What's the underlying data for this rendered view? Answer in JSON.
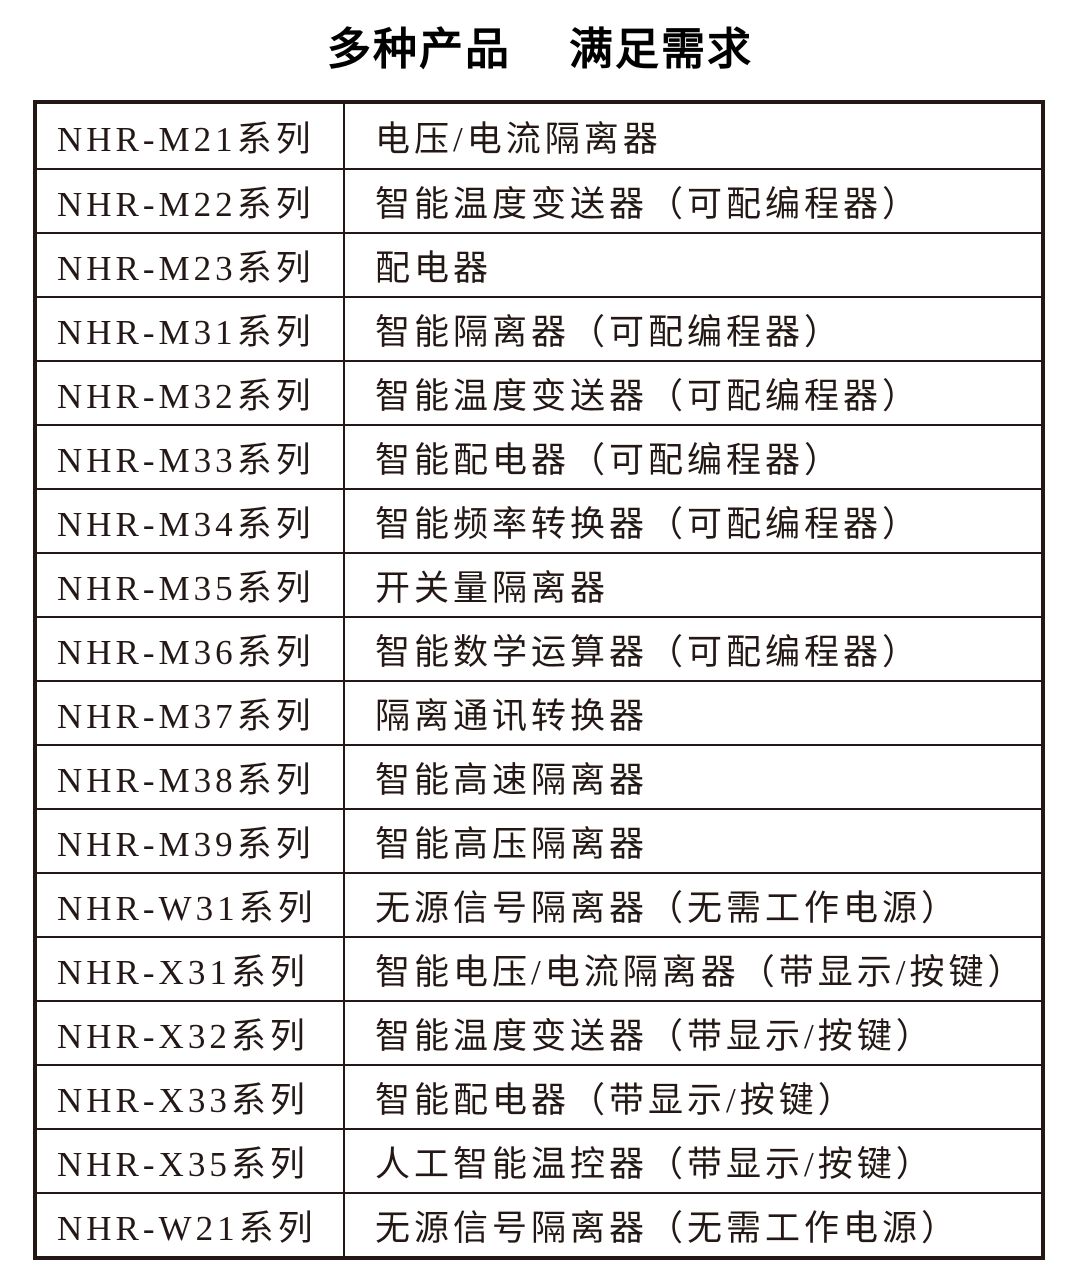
{
  "page": {
    "title_part1": "多种产品",
    "title_part2": "满足需求"
  },
  "colors": {
    "ink": "#231815",
    "title": "#000000",
    "background": "#ffffff"
  },
  "table": {
    "columns": [
      "series",
      "product"
    ],
    "rows": [
      {
        "series": "NHR-M21系列",
        "product": "电压/电流隔离器"
      },
      {
        "series": "NHR-M22系列",
        "product": "智能温度变送器（可配编程器）"
      },
      {
        "series": "NHR-M23系列",
        "product": "配电器"
      },
      {
        "series": "NHR-M31系列",
        "product": "智能隔离器（可配编程器）"
      },
      {
        "series": "NHR-M32系列",
        "product": "智能温度变送器（可配编程器）"
      },
      {
        "series": "NHR-M33系列",
        "product": "智能配电器（可配编程器）"
      },
      {
        "series": "NHR-M34系列",
        "product": "智能频率转换器（可配编程器）"
      },
      {
        "series": "NHR-M35系列",
        "product": "开关量隔离器"
      },
      {
        "series": "NHR-M36系列",
        "product": "智能数学运算器（可配编程器）"
      },
      {
        "series": "NHR-M37系列",
        "product": "隔离通讯转换器"
      },
      {
        "series": "NHR-M38系列",
        "product": "智能高速隔离器"
      },
      {
        "series": "NHR-M39系列",
        "product": "智能高压隔离器"
      },
      {
        "series": "NHR-W31系列",
        "product": "无源信号隔离器（无需工作电源）"
      },
      {
        "series": "NHR-X31系列",
        "product": "智能电压/电流隔离器（带显示/按键）"
      },
      {
        "series": "NHR-X32系列",
        "product": "智能温度变送器（带显示/按键）"
      },
      {
        "series": "NHR-X33系列",
        "product": "智能配电器（带显示/按键）"
      },
      {
        "series": "NHR-X35系列",
        "product": "人工智能温控器（带显示/按键）"
      },
      {
        "series": "NHR-W21系列",
        "product": "无源信号隔离器（无需工作电源）"
      }
    ]
  }
}
